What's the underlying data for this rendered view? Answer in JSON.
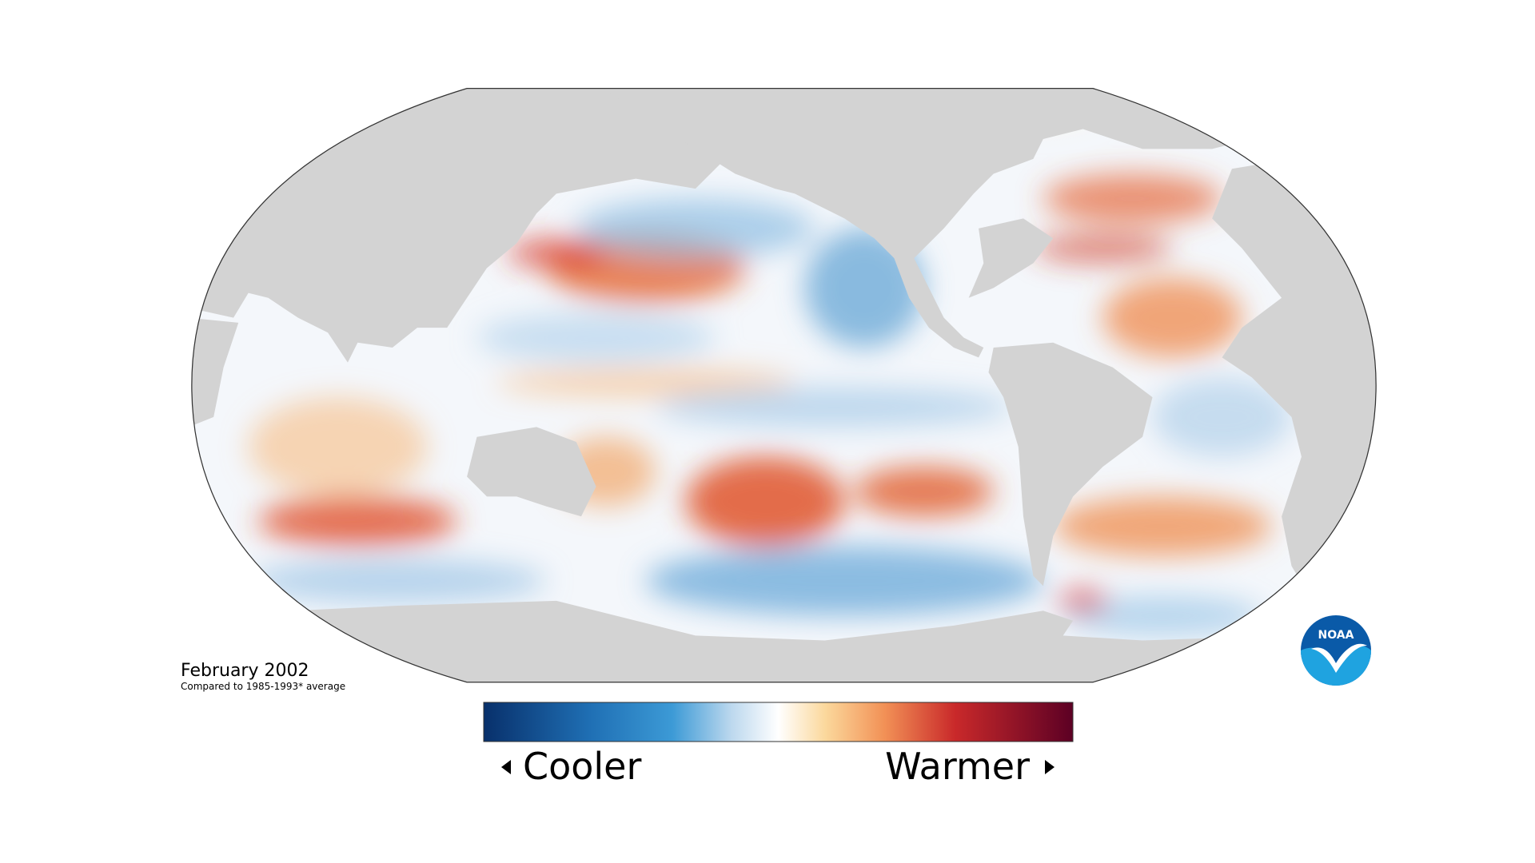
{
  "title": "February 2002",
  "subtitle": "Compared to 1985-1993* average",
  "legend": {
    "low_label": "Cooler",
    "high_label": "Warmer"
  },
  "logo": {
    "text": "NOAA"
  }
}
